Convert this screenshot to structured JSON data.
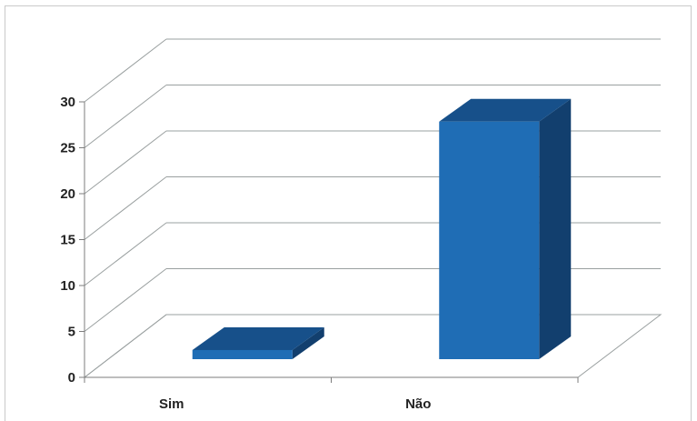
{
  "chart_data": {
    "type": "bar",
    "title": "",
    "xlabel": "",
    "ylabel": "",
    "categories": [
      "Sim",
      "Não"
    ],
    "values": [
      1,
      26
    ],
    "ylim": [
      0,
      30
    ],
    "yticks": [
      0,
      5,
      10,
      15,
      20,
      25,
      30
    ],
    "grid": true,
    "legend": "none",
    "colors": {
      "bar_front": "#1f6db5",
      "bar_top": "#17508a",
      "bar_side": "#123f6e",
      "grid": "#9aa0a0",
      "axis": "#7d7d7d"
    }
  }
}
